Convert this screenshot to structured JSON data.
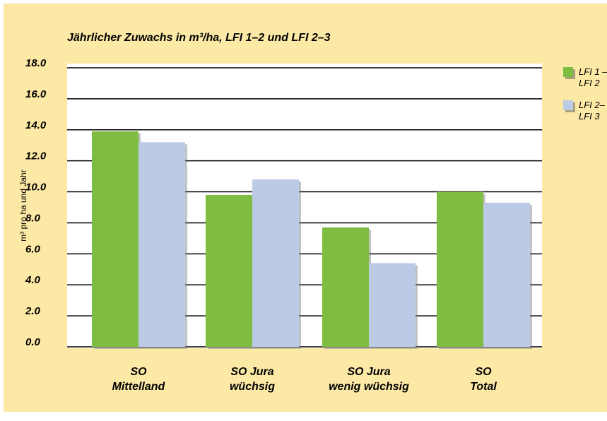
{
  "colors": {
    "background": "#fde9a6",
    "plot_area": "#ffffff",
    "series_1": "#7fbd42",
    "series_2": "#bccae6",
    "title": "#000000"
  },
  "chart_data": {
    "type": "bar",
    "title": "Jährlicher Zuwachs in m³/ha, LFI 1–2 und LFI 2–3",
    "ylabel": "m³ pro ha und Jahr",
    "xlabel": "",
    "ylim": [
      0,
      18
    ],
    "yticks": [
      0,
      2,
      4,
      6,
      8,
      10,
      12,
      14,
      16,
      18
    ],
    "ytick_labels": [
      "0.0",
      "2.0",
      "4.0",
      "6.0",
      "8.0",
      "10.0",
      "12.0",
      "14.0",
      "16.0",
      "18.0"
    ],
    "categories": [
      [
        "SO",
        "Mittelland"
      ],
      [
        "SO Jura",
        "wüchsig"
      ],
      [
        "SO Jura",
        "wenig wüchsig"
      ],
      [
        "SO",
        "Total"
      ]
    ],
    "series": [
      {
        "name": "LFI 1 – LFI 2",
        "legend_lines": [
          "LFI 1 –",
          "LFI 2"
        ],
        "color": "#7fbd42",
        "values": [
          13.9,
          9.8,
          7.7,
          10.0
        ]
      },
      {
        "name": "LFI 2– LFI 3",
        "legend_lines": [
          "LFI 2–",
          "LFI 3"
        ],
        "color": "#bccae6",
        "values": [
          13.2,
          10.8,
          5.4,
          9.3
        ]
      }
    ],
    "grid": true,
    "legend_position": "right"
  }
}
